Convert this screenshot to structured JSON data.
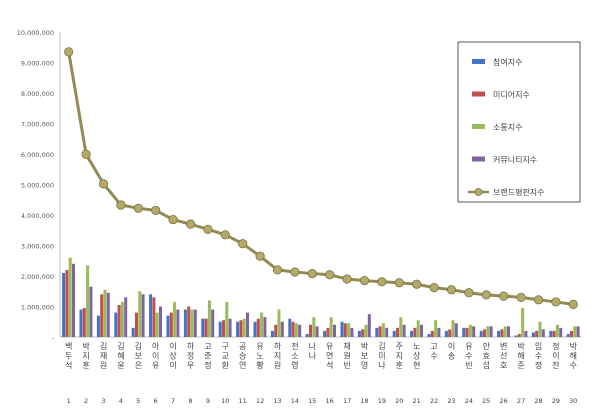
{
  "chart_data": {
    "type": "bar",
    "ylim": [
      0,
      10000000
    ],
    "y_ticks": [
      {
        "value": 0,
        "label": "-"
      },
      {
        "value": 1000000,
        "label": "1,000,000"
      },
      {
        "value": 2000000,
        "label": "2,000,000"
      },
      {
        "value": 3000000,
        "label": "3,000,000"
      },
      {
        "value": 4000000,
        "label": "4,000,000"
      },
      {
        "value": 5000000,
        "label": "5,000,000"
      },
      {
        "value": 6000000,
        "label": "6,000,000"
      },
      {
        "value": 7000000,
        "label": "7,000,000"
      },
      {
        "value": 8000000,
        "label": "8,000,000"
      },
      {
        "value": 9000000,
        "label": "9,000,000"
      },
      {
        "value": 10000000,
        "label": "10,000,000"
      }
    ],
    "grid": false,
    "legend_placement": "top-right",
    "categories": [
      "1",
      "2",
      "3",
      "4",
      "5",
      "6",
      "7",
      "8",
      "9",
      "10",
      "11",
      "12",
      "13",
      "14",
      "15",
      "16",
      "17",
      "18",
      "19",
      "20",
      "21",
      "22",
      "23",
      "24",
      "25",
      "26",
      "27",
      "28",
      "29",
      "30"
    ],
    "names": [
      "백두석",
      "박지훈",
      "김재원",
      "김혜윤",
      "김보은",
      "아이유",
      "이상이",
      "하정우",
      "고준정",
      "구교환",
      "공승연",
      "유노황",
      "하지원",
      "전소영",
      "나나",
      "유연석",
      "채원빈",
      "박보영",
      "김미나",
      "주지훈",
      "노상현",
      "고수",
      "이송",
      "유수빈",
      "안효섭",
      "변선호",
      "박해준",
      "임수정",
      "정이찬",
      "박해수"
    ],
    "series": [
      {
        "name": "참여지수",
        "color": "#4472C4",
        "values": [
          2100000,
          900000,
          700000,
          800000,
          300000,
          1400000,
          700000,
          900000,
          600000,
          500000,
          500000,
          500000,
          200000,
          600000,
          100000,
          200000,
          500000,
          200000,
          300000,
          200000,
          200000,
          100000,
          200000,
          300000,
          200000,
          200000,
          50000,
          150000,
          200000,
          100000
        ]
      },
      {
        "name": "미디어지수",
        "color": "#C0504D",
        "values": [
          2200000,
          950000,
          1400000,
          1050000,
          800000,
          1300000,
          800000,
          1000000,
          600000,
          550000,
          550000,
          600000,
          400000,
          500000,
          400000,
          300000,
          450000,
          250000,
          350000,
          300000,
          300000,
          200000,
          250000,
          300000,
          250000,
          250000,
          100000,
          200000,
          200000,
          200000
        ]
      },
      {
        "name": "소통지수",
        "color": "#9BBB59",
        "values": [
          2600000,
          2350000,
          1550000,
          1150000,
          1500000,
          800000,
          1150000,
          900000,
          1200000,
          1150000,
          600000,
          800000,
          900000,
          450000,
          650000,
          650000,
          450000,
          400000,
          450000,
          650000,
          550000,
          550000,
          550000,
          400000,
          350000,
          350000,
          950000,
          500000,
          400000,
          350000
        ]
      },
      {
        "name": "커뮤니티지수",
        "color": "#8064A2",
        "values": [
          2400000,
          1650000,
          1450000,
          1300000,
          1400000,
          1000000,
          900000,
          900000,
          900000,
          600000,
          800000,
          650000,
          500000,
          400000,
          350000,
          400000,
          300000,
          750000,
          300000,
          400000,
          400000,
          300000,
          450000,
          350000,
          350000,
          350000,
          200000,
          250000,
          300000,
          350000
        ]
      },
      {
        "name": "브랜드평판지수",
        "color": "#948A54",
        "values": [
          9350000,
          5990000,
          5020000,
          4330000,
          4220000,
          4150000,
          3850000,
          3700000,
          3530000,
          3350000,
          3060000,
          2650000,
          2200000,
          2130000,
          2080000,
          2040000,
          1900000,
          1850000,
          1810000,
          1780000,
          1730000,
          1620000,
          1550000,
          1450000,
          1380000,
          1340000,
          1300000,
          1220000,
          1150000,
          1070000
        ]
      }
    ]
  }
}
